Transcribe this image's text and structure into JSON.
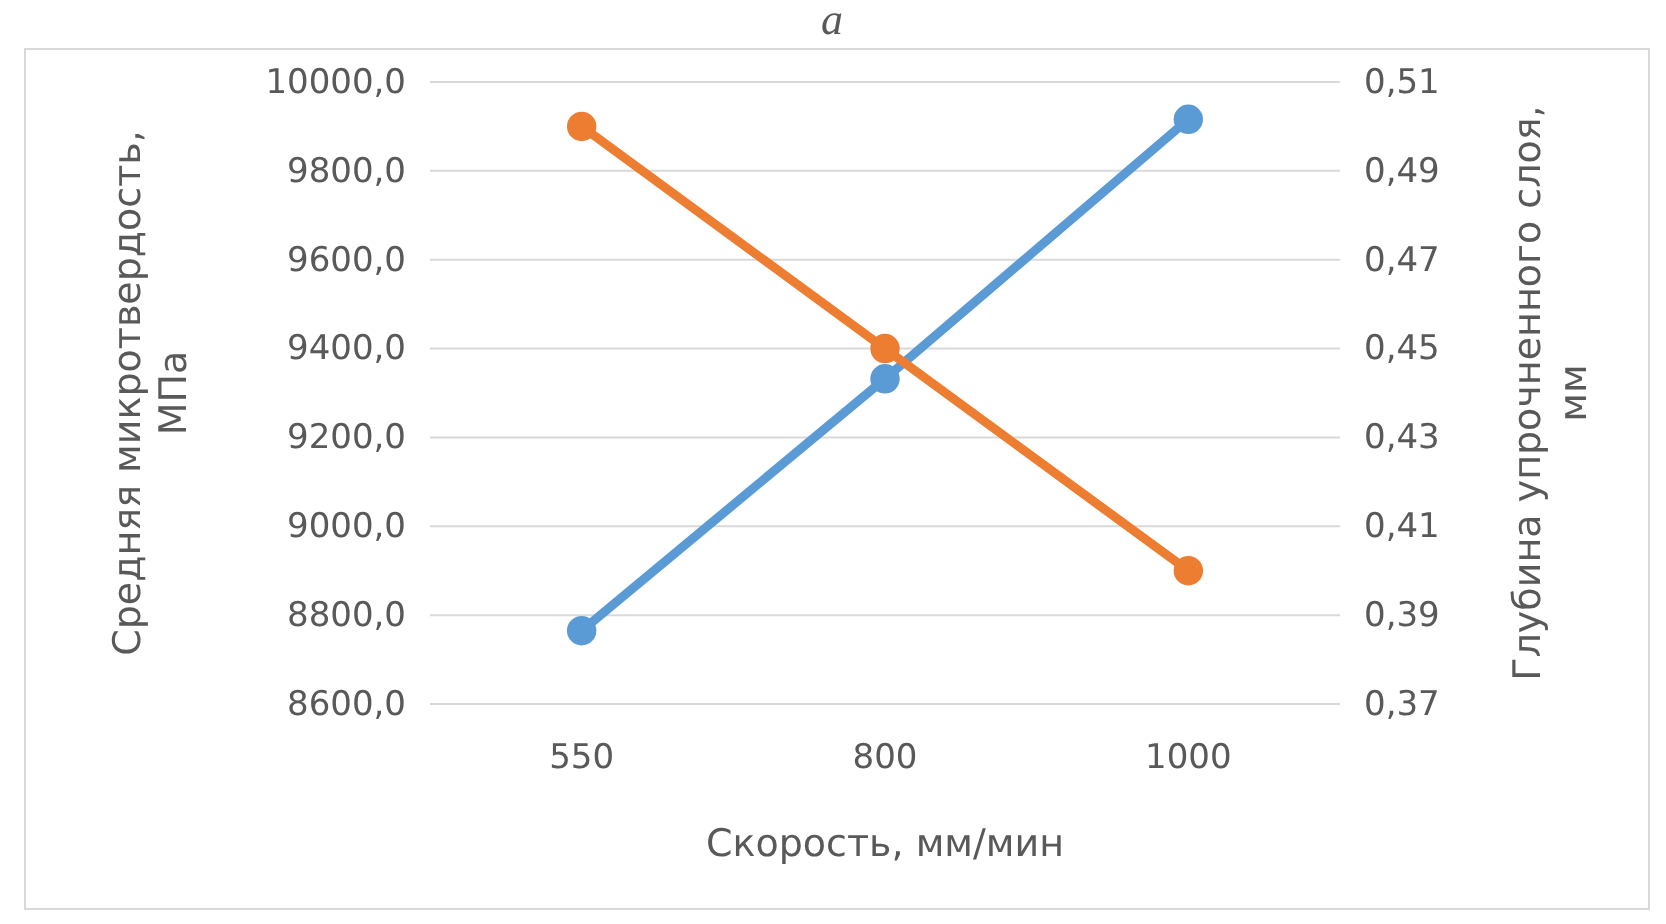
{
  "chart_data": {
    "type": "line",
    "xlabel": "Скорость, мм/мин",
    "ylabel": "Средняя микротвердость, МПа",
    "y2label": "Глубина упрочненного слоя, мм",
    "annotations": [
      "а"
    ],
    "categories": [
      "550",
      "800",
      "1000"
    ],
    "series": [
      {
        "color": "#5b9bd5",
        "values": [
          8765,
          9332,
          9916
        ]
      },
      {
        "color": "#ed7d31",
        "values": [
          0.5,
          0.45,
          0.4
        ],
        "axis": "y2"
      }
    ],
    "ylim": [
      8600,
      10000
    ],
    "yticks": [
      {
        "value": 8600,
        "label": "8600,0"
      },
      {
        "value": 8800,
        "label": "8800,0"
      },
      {
        "value": 9000,
        "label": "9000,0"
      },
      {
        "value": 9200,
        "label": "9200,0"
      },
      {
        "value": 9400,
        "label": "9400,0"
      },
      {
        "value": 9600,
        "label": "9600,0"
      },
      {
        "value": 9800,
        "label": "9800,0"
      },
      {
        "value": 10000,
        "label": "10000,0"
      }
    ],
    "y2lim": [
      0.37,
      0.51
    ],
    "y2ticks": [
      {
        "value": 0.37,
        "label": "0,37"
      },
      {
        "value": 0.39,
        "label": "0,39"
      },
      {
        "value": 0.41,
        "label": "0,41"
      },
      {
        "value": 0.43,
        "label": "0,43"
      },
      {
        "value": 0.45,
        "label": "0,45"
      },
      {
        "value": 0.47,
        "label": "0,47"
      },
      {
        "value": 0.49,
        "label": "0,49"
      },
      {
        "value": 0.51,
        "label": "0,51"
      }
    ],
    "grid": "y",
    "marker": "circle",
    "line_style": "solid"
  }
}
